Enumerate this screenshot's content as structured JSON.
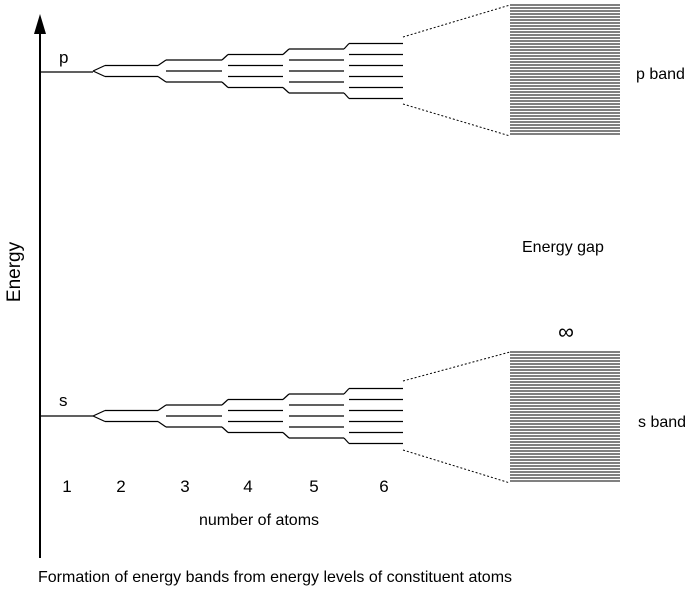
{
  "axis": {
    "y_label": "Energy"
  },
  "levels": {
    "p_label": "p",
    "s_label": "s"
  },
  "atom_counts": [
    "1",
    "2",
    "3",
    "4",
    "5",
    "6"
  ],
  "x_label": "number of atoms",
  "bands": {
    "p_label": "p band",
    "s_label": "s band",
    "gap_label": "Energy gap",
    "infinity_symbol": "∞"
  },
  "caption": "Formation of energy bands from energy levels of constituent atoms"
}
